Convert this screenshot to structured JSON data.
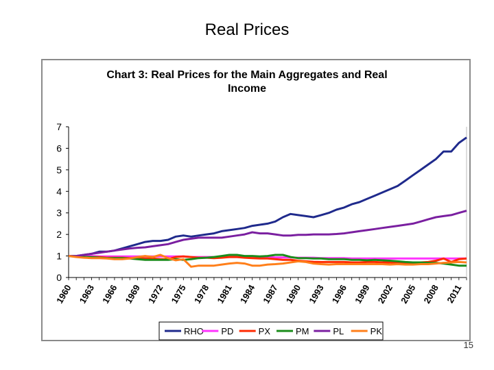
{
  "slide": {
    "title": "Real Prices",
    "page_number": "15"
  },
  "chart_data": {
    "type": "line",
    "title_line1": "Chart 3: Real Prices for the Main Aggregates and Real",
    "title_line2": "Income",
    "xlabel": "",
    "ylabel": "",
    "ylim": [
      0,
      7
    ],
    "xlim": [
      1960,
      2012
    ],
    "grid": false,
    "legend_position": "bottom",
    "y_ticks": [
      "0",
      "1",
      "2",
      "3",
      "4",
      "5",
      "6",
      "7"
    ],
    "x_ticks": [
      "1960",
      "1963",
      "1966",
      "1969",
      "1972",
      "1975",
      "1978",
      "1981",
      "1984",
      "1987",
      "1990",
      "1993",
      "1996",
      "1999",
      "2002",
      "2005",
      "2008",
      "2011"
    ],
    "x": [
      1960,
      1961,
      1962,
      1963,
      1964,
      1965,
      1966,
      1967,
      1968,
      1969,
      1970,
      1971,
      1972,
      1973,
      1974,
      1975,
      1976,
      1977,
      1978,
      1979,
      1980,
      1981,
      1982,
      1983,
      1984,
      1985,
      1986,
      1987,
      1988,
      1989,
      1990,
      1991,
      1992,
      1993,
      1994,
      1995,
      1996,
      1997,
      1998,
      1999,
      2000,
      2001,
      2002,
      2003,
      2004,
      2005,
      2006,
      2007,
      2008,
      2009,
      2010,
      2011,
      2012
    ],
    "series": [
      {
        "name": "RHO",
        "color": "#1f2a8c",
        "values": [
          1.0,
          1.0,
          1.05,
          1.1,
          1.2,
          1.2,
          1.25,
          1.35,
          1.45,
          1.55,
          1.65,
          1.7,
          1.7,
          1.75,
          1.9,
          1.95,
          1.9,
          1.95,
          2.0,
          2.05,
          2.15,
          2.2,
          2.25,
          2.3,
          2.4,
          2.45,
          2.5,
          2.6,
          2.8,
          2.95,
          2.9,
          2.85,
          2.8,
          2.9,
          3.0,
          3.15,
          3.25,
          3.4,
          3.5,
          3.65,
          3.8,
          3.95,
          4.1,
          4.25,
          4.5,
          4.75,
          5.0,
          5.25,
          5.5,
          5.85,
          5.85,
          6.25,
          6.5
        ]
      },
      {
        "name": "PD",
        "color": "#ff33ff",
        "values": [
          1.0,
          1.0,
          1.0,
          1.0,
          0.98,
          0.98,
          0.98,
          0.98,
          0.98,
          0.98,
          0.98,
          0.98,
          0.98,
          0.98,
          0.98,
          0.98,
          0.95,
          0.95,
          0.95,
          0.95,
          0.95,
          0.95,
          0.95,
          0.95,
          0.95,
          0.95,
          0.95,
          0.93,
          0.93,
          0.93,
          0.92,
          0.92,
          0.92,
          0.9,
          0.9,
          0.9,
          0.9,
          0.88,
          0.88,
          0.88,
          0.88,
          0.88,
          0.88,
          0.88,
          0.88,
          0.88,
          0.88,
          0.88,
          0.88,
          0.88,
          0.88,
          0.88,
          0.88
        ]
      },
      {
        "name": "PX",
        "color": "#ff2a00",
        "values": [
          1.0,
          1.0,
          0.95,
          0.95,
          0.95,
          0.92,
          0.92,
          0.92,
          0.9,
          0.9,
          0.88,
          0.88,
          0.85,
          0.85,
          0.95,
          0.98,
          0.95,
          0.92,
          0.92,
          0.9,
          0.92,
          0.95,
          0.95,
          0.92,
          0.9,
          0.88,
          0.88,
          0.85,
          0.82,
          0.82,
          0.78,
          0.75,
          0.73,
          0.72,
          0.72,
          0.72,
          0.72,
          0.7,
          0.7,
          0.72,
          0.72,
          0.7,
          0.7,
          0.7,
          0.68,
          0.68,
          0.7,
          0.72,
          0.78,
          0.88,
          0.72,
          0.85,
          0.88
        ]
      },
      {
        "name": "PM",
        "color": "#1a8c1a",
        "values": [
          1.0,
          1.0,
          0.95,
          0.95,
          0.92,
          0.9,
          0.9,
          0.9,
          0.88,
          0.85,
          0.82,
          0.82,
          0.82,
          0.82,
          0.85,
          0.82,
          0.85,
          0.9,
          0.92,
          0.95,
          1.0,
          1.05,
          1.05,
          1.0,
          1.0,
          0.98,
          1.0,
          1.05,
          1.05,
          0.95,
          0.9,
          0.9,
          0.88,
          0.88,
          0.85,
          0.85,
          0.85,
          0.82,
          0.82,
          0.8,
          0.82,
          0.8,
          0.78,
          0.75,
          0.72,
          0.7,
          0.7,
          0.68,
          0.68,
          0.65,
          0.6,
          0.55,
          0.55
        ]
      },
      {
        "name": "PL",
        "color": "#7a1fa0",
        "values": [
          1.0,
          1.0,
          1.05,
          1.1,
          1.15,
          1.2,
          1.25,
          1.3,
          1.35,
          1.38,
          1.4,
          1.45,
          1.5,
          1.55,
          1.65,
          1.75,
          1.8,
          1.85,
          1.85,
          1.85,
          1.85,
          1.9,
          1.95,
          2.0,
          2.1,
          2.05,
          2.05,
          2.0,
          1.95,
          1.95,
          1.98,
          1.98,
          2.0,
          2.0,
          2.0,
          2.02,
          2.05,
          2.1,
          2.15,
          2.2,
          2.25,
          2.3,
          2.35,
          2.4,
          2.45,
          2.5,
          2.6,
          2.7,
          2.8,
          2.85,
          2.9,
          3.0,
          3.1
        ]
      },
      {
        "name": "PK",
        "color": "#ff7f1a",
        "values": [
          1.0,
          0.95,
          0.92,
          0.9,
          0.9,
          0.88,
          0.85,
          0.85,
          0.88,
          0.95,
          1.0,
          0.95,
          1.05,
          0.9,
          0.8,
          0.85,
          0.5,
          0.55,
          0.55,
          0.55,
          0.6,
          0.65,
          0.68,
          0.65,
          0.55,
          0.55,
          0.6,
          0.62,
          0.65,
          0.7,
          0.75,
          0.72,
          0.65,
          0.62,
          0.6,
          0.62,
          0.62,
          0.62,
          0.62,
          0.62,
          0.62,
          0.62,
          0.6,
          0.62,
          0.6,
          0.6,
          0.62,
          0.62,
          0.65,
          0.68,
          0.7,
          0.72,
          0.7
        ]
      }
    ]
  }
}
